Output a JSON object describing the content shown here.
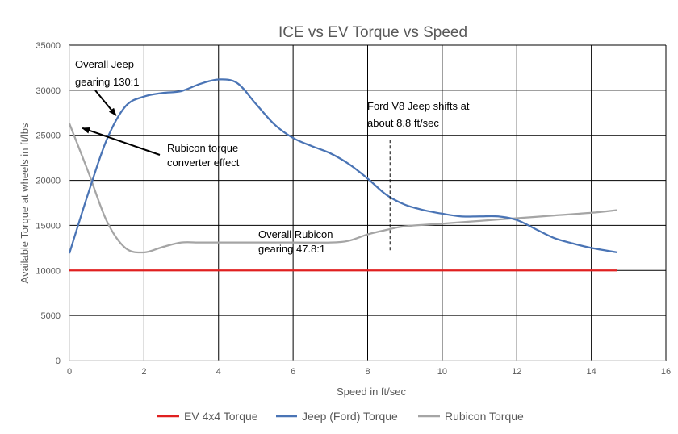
{
  "chart_data": {
    "type": "line",
    "title": "ICE vs EV Torque vs Speed",
    "xlabel": "Speed in ft/sec",
    "ylabel": "Available Torque at wheels in ft/lbs",
    "xlim": [
      0,
      16
    ],
    "ylim": [
      0,
      35000
    ],
    "xticks": [
      0,
      2,
      4,
      6,
      8,
      10,
      12,
      14,
      16
    ],
    "yticks": [
      0,
      5000,
      10000,
      15000,
      20000,
      25000,
      30000,
      35000
    ],
    "grid": true,
    "legend_position": "bottom",
    "series": [
      {
        "name": "EV 4x4 Torque",
        "color": "#e02020",
        "x": [
          0,
          14.7
        ],
        "y": [
          10000,
          10000
        ]
      },
      {
        "name": "Jeep (Ford) Torque",
        "color": "#4a74b5",
        "x": [
          0,
          0.5,
          1,
          1.5,
          2,
          2.5,
          3,
          3.5,
          4,
          4.5,
          5,
          5.5,
          6,
          6.5,
          7,
          7.5,
          8,
          8.5,
          9,
          9.5,
          10,
          10.5,
          11,
          11.5,
          12,
          12.5,
          13,
          13.5,
          14,
          14.7
        ],
        "y": [
          11900,
          18500,
          24500,
          28200,
          29300,
          29700,
          29900,
          30700,
          31200,
          30800,
          28500,
          26200,
          24700,
          23800,
          23000,
          21800,
          20200,
          18400,
          17300,
          16700,
          16300,
          16000,
          16000,
          16000,
          15600,
          14600,
          13600,
          13000,
          12500,
          12000
        ]
      },
      {
        "name": "Rubicon Torque",
        "color": "#a5a5a5",
        "x": [
          0,
          0.5,
          1,
          1.5,
          2,
          2.5,
          3,
          3.5,
          4,
          5,
          6,
          7,
          7.5,
          8,
          8.5,
          9,
          10,
          11,
          12,
          13,
          14,
          14.7
        ],
        "y": [
          26300,
          21000,
          15500,
          12500,
          12000,
          12600,
          13100,
          13100,
          13100,
          13100,
          13100,
          13100,
          13300,
          14000,
          14500,
          14900,
          15200,
          15500,
          15800,
          16100,
          16400,
          16700
        ]
      }
    ],
    "annotations": [
      {
        "id": "jeep-gearing",
        "lines": [
          "Overall Jeep",
          "gearing 130:1"
        ],
        "arrow_to": [
          1.25,
          27200
        ]
      },
      {
        "id": "rubicon-converter",
        "lines": [
          "Rubicon torque",
          "converter effect"
        ],
        "arrow_to": [
          0.35,
          25800
        ]
      },
      {
        "id": "ford-shift",
        "lines": [
          "Ford V8 Jeep shifts at",
          "about 8.8 ft/sec"
        ],
        "marker_x": 8.6,
        "marker_y": [
          12000,
          24500
        ]
      },
      {
        "id": "rubicon-gearing",
        "lines": [
          "Overall Rubicon",
          "gearing 47.8:1"
        ]
      }
    ]
  }
}
